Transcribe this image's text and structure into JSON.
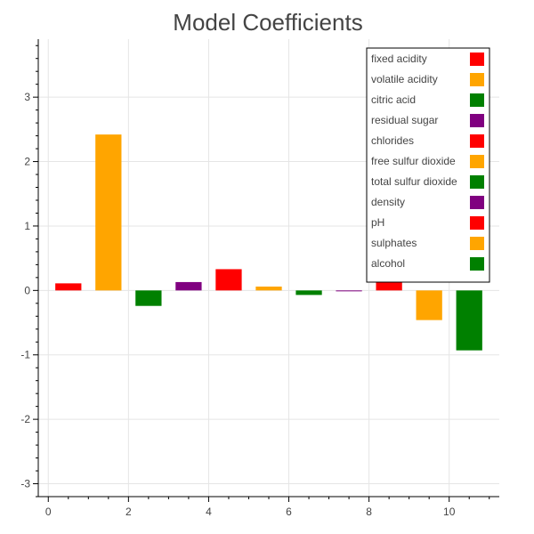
{
  "chart_data": {
    "type": "bar",
    "title": "Model Coefficients",
    "xlabel": "",
    "ylabel": "",
    "xlim": [
      -0.25,
      11.25
    ],
    "ylim": [
      -3.2,
      3.9
    ],
    "x_ticks": [
      0,
      2,
      4,
      6,
      8,
      10
    ],
    "y_ticks": [
      -3,
      -2,
      -1,
      0,
      1,
      2,
      3
    ],
    "grid": true,
    "legend_position": "top-right",
    "bar_width": 0.65,
    "series": [
      {
        "name": "fixed acidity",
        "x": 0.5,
        "value": 0.11,
        "color": "#ff0000"
      },
      {
        "name": "volatile acidity",
        "x": 1.5,
        "value": 2.42,
        "color": "#ffa500"
      },
      {
        "name": "citric acid",
        "x": 2.5,
        "value": -0.24,
        "color": "#008000"
      },
      {
        "name": "residual sugar",
        "x": 3.5,
        "value": 0.13,
        "color": "#800080"
      },
      {
        "name": "chlorides",
        "x": 4.5,
        "value": 0.33,
        "color": "#ff0000"
      },
      {
        "name": "free sulfur dioxide",
        "x": 5.5,
        "value": 0.06,
        "color": "#ffa500"
      },
      {
        "name": "total sulfur dioxide",
        "x": 6.5,
        "value": -0.07,
        "color": "#008000"
      },
      {
        "name": "density",
        "x": 7.5,
        "value": -0.01,
        "color": "#800080"
      },
      {
        "name": "pH",
        "x": 8.5,
        "value": 0.3,
        "color": "#ff0000"
      },
      {
        "name": "sulphates",
        "x": 9.5,
        "value": -0.46,
        "color": "#ffa500"
      },
      {
        "name": "alcohol",
        "x": 10.5,
        "value": -0.93,
        "color": "#008000"
      }
    ]
  }
}
